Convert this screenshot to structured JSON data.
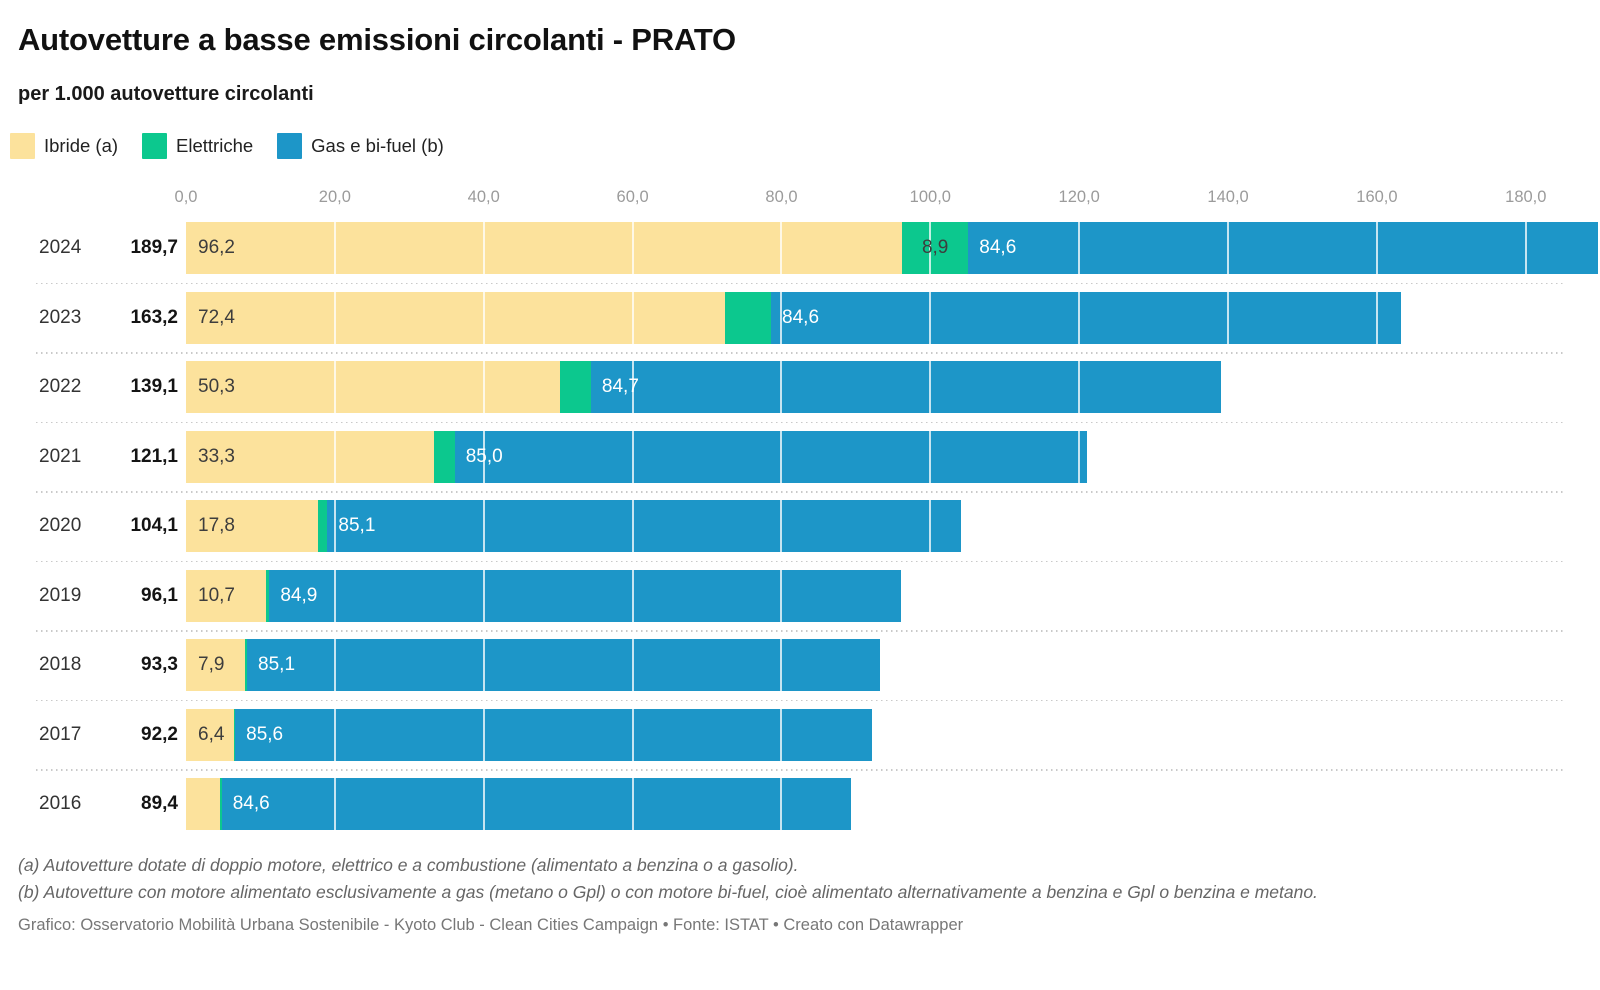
{
  "header": {
    "title": "Autovetture a basse emissioni circolanti - PRATO",
    "subtitle": "per 1.000 autovetture circolanti"
  },
  "legend": [
    {
      "key": "ibride",
      "label": "Ibride (a)",
      "color": "#FCE29C"
    },
    {
      "key": "elettriche",
      "label": "Elettriche",
      "color": "#0CC88E"
    },
    {
      "key": "gas",
      "label": "Gas e bi-fuel (b)",
      "color": "#1D96C8"
    }
  ],
  "axis": {
    "ticks": [
      "0,0",
      "20,0",
      "40,0",
      "60,0",
      "80,0",
      "100,0",
      "120,0",
      "140,0",
      "160,0",
      "180,0"
    ],
    "tick_values": [
      0,
      20,
      40,
      60,
      80,
      100,
      120,
      140,
      160,
      180
    ]
  },
  "chart_data": {
    "type": "bar",
    "orientation": "horizontal",
    "stacked": true,
    "title": "Autovetture a basse emissioni circolanti - PRATO",
    "subtitle": "per 1.000 autovetture circolanti",
    "categories": [
      "2024",
      "2023",
      "2022",
      "2021",
      "2020",
      "2019",
      "2018",
      "2017",
      "2016"
    ],
    "series": [
      {
        "name": "Ibride (a)",
        "color": "#FCE29C",
        "values": [
          96.2,
          72.4,
          50.3,
          33.3,
          17.8,
          10.7,
          7.9,
          6.4,
          4.6
        ]
      },
      {
        "name": "Elettriche",
        "color": "#0CC88E",
        "values": [
          8.9,
          6.2,
          4.1,
          2.8,
          1.2,
          0.5,
          0.3,
          0.2,
          0.2
        ]
      },
      {
        "name": "Gas e bi-fuel (b)",
        "color": "#1D96C8",
        "values": [
          84.6,
          84.6,
          84.7,
          85.0,
          85.1,
          84.9,
          85.1,
          85.6,
          84.6
        ]
      }
    ],
    "totals": [
      189.7,
      163.2,
      139.1,
      121.1,
      104.1,
      96.1,
      93.3,
      92.2,
      89.4
    ],
    "xlabel": "",
    "ylabel": "",
    "xlim": [
      0,
      189.7
    ],
    "grid": "white-lines-over-bars",
    "legend_position": "top-left"
  },
  "rows": [
    {
      "year": "2024",
      "total": "189,7",
      "ibride": "96,2",
      "elettriche": "8,9",
      "gas": "84,6"
    },
    {
      "year": "2023",
      "total": "163,2",
      "ibride": "72,4",
      "elettriche": "",
      "gas": "84,6"
    },
    {
      "year": "2022",
      "total": "139,1",
      "ibride": "50,3",
      "elettriche": "",
      "gas": "84,7"
    },
    {
      "year": "2021",
      "total": "121,1",
      "ibride": "33,3",
      "elettriche": "",
      "gas": "85,0"
    },
    {
      "year": "2020",
      "total": "104,1",
      "ibride": "17,8",
      "elettriche": "",
      "gas": "85,1"
    },
    {
      "year": "2019",
      "total": "96,1",
      "ibride": "10,7",
      "elettriche": "",
      "gas": "84,9"
    },
    {
      "year": "2018",
      "total": "93,3",
      "ibride": "7,9",
      "elettriche": "",
      "gas": "85,1"
    },
    {
      "year": "2017",
      "total": "92,2",
      "ibride": "6,4",
      "elettriche": "",
      "gas": "85,6"
    },
    {
      "year": "2016",
      "total": "89,4",
      "ibride": "",
      "elettriche": "",
      "gas": "84,6"
    }
  ],
  "footnotes": {
    "a": "(a) Autovetture dotate di doppio motore, elettrico e a combustione (alimentato a benzina o a gasolio).",
    "b": "(b) Autovetture con motore alimentato esclusivamente a gas (metano o Gpl) o con motore bi-fuel, cioè alimentato alternativamente a benzina e Gpl o benzina e metano."
  },
  "credit": "Grafico: Osservatorio Mobilità Urbana Sostenibile - Kyoto Club - Clean Cities Campaign • Fonte: ISTAT • Creato con Datawrapper"
}
